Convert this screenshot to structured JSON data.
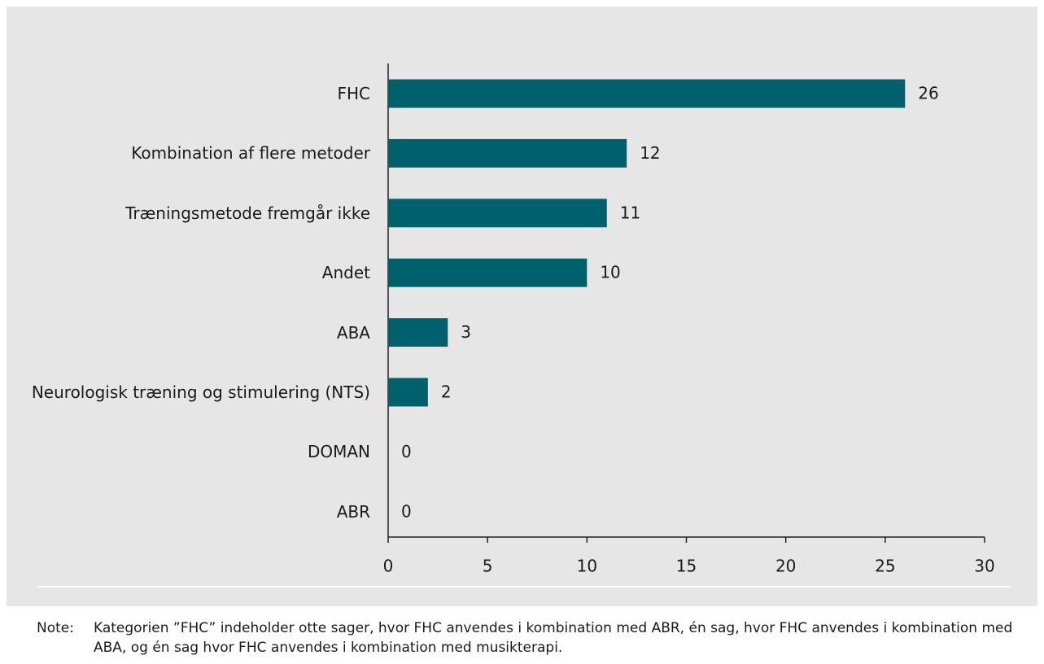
{
  "chart_data": {
    "type": "bar",
    "orientation": "horizontal",
    "categories": [
      "FHC",
      "Kombination af flere metoder",
      "Træningsmetode fremgår ikke",
      "Andet",
      "ABA",
      "Neurologisk træning og stimulering (NTS)",
      "DOMAN",
      "ABR"
    ],
    "values": [
      26,
      12,
      11,
      10,
      3,
      2,
      0,
      0
    ],
    "color": "#00606b",
    "xlim": [
      0,
      30
    ],
    "xticks": [
      0,
      5,
      10,
      15,
      20,
      25,
      30
    ]
  },
  "note": {
    "label": "Note:",
    "text": "Kategorien ”FHC” indeholder otte sager, hvor FHC anvendes i kombination med ABR, én sag, hvor FHC anvendes i kombination med ABA, og én sag hvor FHC anvendes i kombination med musikterapi."
  }
}
